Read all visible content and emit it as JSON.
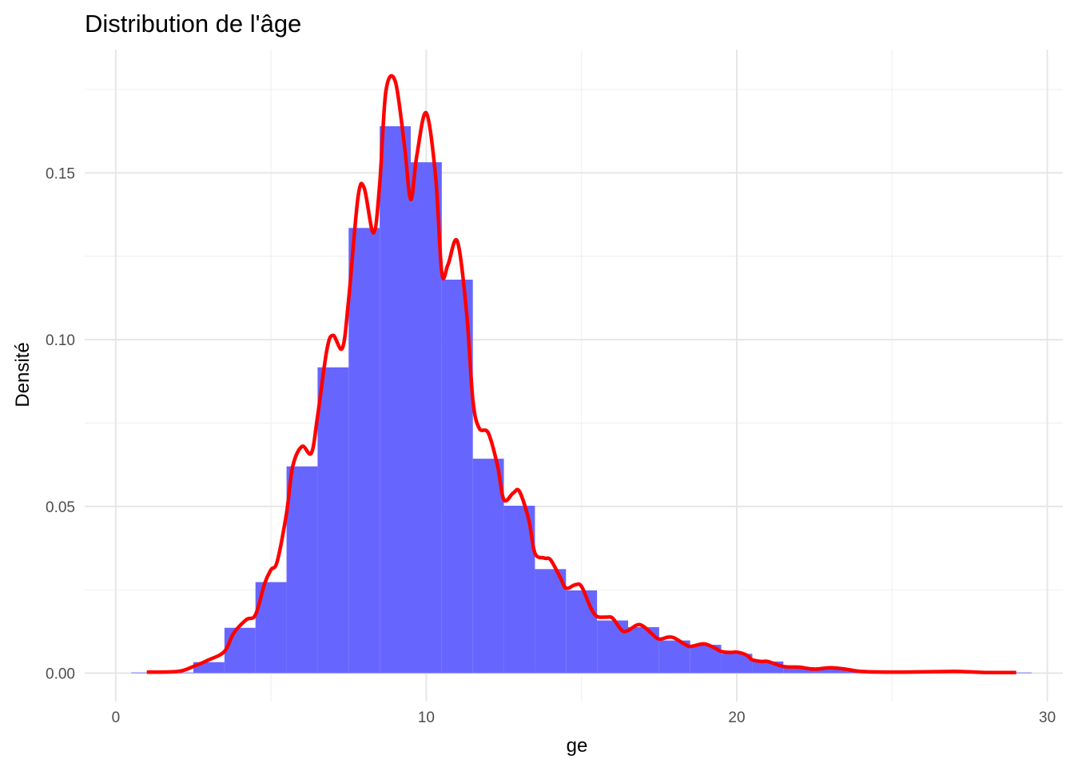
{
  "chart_data": {
    "type": "histogram",
    "title": "Distribution de l'âge",
    "xlabel": "ge",
    "ylabel": "Densité",
    "xlim": [
      -1,
      30.5
    ],
    "ylim": [
      -0.0085,
      0.187
    ],
    "x_ticks": [
      0,
      10,
      20,
      30
    ],
    "x_tick_labels": [
      "0",
      "10",
      "20",
      "30"
    ],
    "x_minor_ticks": [
      5,
      15,
      25
    ],
    "y_ticks": [
      0,
      0.05,
      0.1,
      0.15
    ],
    "y_tick_labels": [
      "0.00",
      "0.05",
      "0.10",
      "0.15"
    ],
    "y_minor_ticks": [
      0.025,
      0.075,
      0.125,
      0.175
    ],
    "grid": true,
    "bin_width": 1,
    "histogram": {
      "color": "#6666ff",
      "bins": [
        {
          "x0": 0.5,
          "x1": 1.5,
          "density": 0.0002
        },
        {
          "x0": 1.5,
          "x1": 2.5,
          "density": 0.0002
        },
        {
          "x0": 2.5,
          "x1": 3.5,
          "density": 0.0033
        },
        {
          "x0": 3.5,
          "x1": 4.5,
          "density": 0.0136
        },
        {
          "x0": 4.5,
          "x1": 5.5,
          "density": 0.0273
        },
        {
          "x0": 5.5,
          "x1": 6.5,
          "density": 0.062
        },
        {
          "x0": 6.5,
          "x1": 7.5,
          "density": 0.0917
        },
        {
          "x0": 7.5,
          "x1": 8.5,
          "density": 0.1335
        },
        {
          "x0": 8.5,
          "x1": 9.5,
          "density": 0.164
        },
        {
          "x0": 9.5,
          "x1": 10.5,
          "density": 0.1532
        },
        {
          "x0": 10.5,
          "x1": 11.5,
          "density": 0.118
        },
        {
          "x0": 11.5,
          "x1": 12.5,
          "density": 0.0643
        },
        {
          "x0": 12.5,
          "x1": 13.5,
          "density": 0.0502
        },
        {
          "x0": 13.5,
          "x1": 14.5,
          "density": 0.0312
        },
        {
          "x0": 14.5,
          "x1": 15.5,
          "density": 0.0248
        },
        {
          "x0": 15.5,
          "x1": 16.5,
          "density": 0.0158
        },
        {
          "x0": 16.5,
          "x1": 17.5,
          "density": 0.0138
        },
        {
          "x0": 17.5,
          "x1": 18.5,
          "density": 0.0098
        },
        {
          "x0": 18.5,
          "x1": 19.5,
          "density": 0.0085
        },
        {
          "x0": 19.5,
          "x1": 20.5,
          "density": 0.0058
        },
        {
          "x0": 20.5,
          "x1": 21.5,
          "density": 0.0035
        },
        {
          "x0": 21.5,
          "x1": 22.5,
          "density": 0.0018
        },
        {
          "x0": 22.5,
          "x1": 23.5,
          "density": 0.0012
        },
        {
          "x0": 23.5,
          "x1": 24.5,
          "density": 0.0008
        },
        {
          "x0": 24.5,
          "x1": 25.5,
          "density": 0.0006
        },
        {
          "x0": 25.5,
          "x1": 26.5,
          "density": 0.0004
        },
        {
          "x0": 26.5,
          "x1": 27.5,
          "density": 0.0004
        },
        {
          "x0": 27.5,
          "x1": 28.5,
          "density": 0.0003
        },
        {
          "x0": 28.5,
          "x1": 29.5,
          "density": 0.0002
        }
      ]
    },
    "density_curve": {
      "color": "#ff0000",
      "x": [
        1,
        2,
        2.5,
        3,
        3.5,
        3.8,
        4.2,
        4.5,
        4.8,
        5,
        5.2,
        5.5,
        5.7,
        6,
        6.3,
        6.5,
        6.8,
        7,
        7.3,
        7.5,
        7.8,
        8,
        8.3,
        8.5,
        8.7,
        9,
        9.3,
        9.5,
        9.7,
        10,
        10.3,
        10.5,
        10.7,
        11,
        11.3,
        11.5,
        11.7,
        12,
        12.3,
        12.5,
        12.8,
        13,
        13.3,
        13.5,
        13.8,
        14,
        14.3,
        14.5,
        14.8,
        15,
        15.3,
        15.5,
        15.8,
        16,
        16.3,
        16.5,
        16.8,
        17,
        17.3,
        17.5,
        17.8,
        18,
        18.3,
        18.5,
        18.8,
        19,
        19.3,
        19.5,
        19.8,
        20,
        20.3,
        20.5,
        20.8,
        21,
        21.5,
        22,
        22.5,
        23,
        23.5,
        24,
        25,
        26,
        27,
        27.5,
        28,
        29
      ],
      "y": [
        0.0003,
        0.0005,
        0.002,
        0.004,
        0.0065,
        0.012,
        0.016,
        0.0175,
        0.027,
        0.031,
        0.0335,
        0.048,
        0.062,
        0.068,
        0.066,
        0.077,
        0.097,
        0.1013,
        0.0975,
        0.112,
        0.1425,
        0.1455,
        0.132,
        0.1465,
        0.1745,
        0.1775,
        0.158,
        0.142,
        0.1555,
        0.168,
        0.149,
        0.12,
        0.1225,
        0.1295,
        0.108,
        0.082,
        0.0735,
        0.072,
        0.062,
        0.052,
        0.054,
        0.0545,
        0.046,
        0.036,
        0.0345,
        0.034,
        0.029,
        0.0255,
        0.0265,
        0.026,
        0.0195,
        0.017,
        0.0168,
        0.0165,
        0.0128,
        0.0128,
        0.0145,
        0.014,
        0.0115,
        0.0102,
        0.0108,
        0.0105,
        0.0088,
        0.008,
        0.0086,
        0.0087,
        0.0075,
        0.0065,
        0.0062,
        0.0063,
        0.0055,
        0.004,
        0.0035,
        0.0035,
        0.002,
        0.0018,
        0.0012,
        0.0016,
        0.0012,
        0.0005,
        0.0003,
        0.0004,
        0.0005,
        0.0004,
        0.0002,
        0.0002
      ]
    }
  }
}
